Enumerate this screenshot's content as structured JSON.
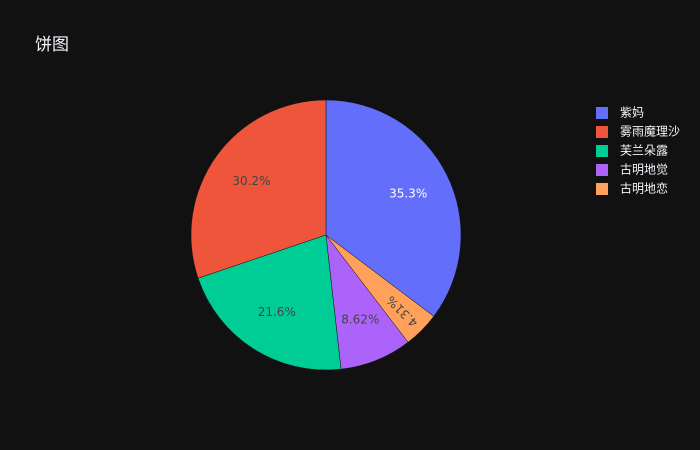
{
  "chart_data": {
    "type": "pie",
    "title": "饼图",
    "categories": [
      "紫妈",
      "雾雨魔理沙",
      "芙兰朵露",
      "古明地觉",
      "古明地恋"
    ],
    "values": [
      35.3,
      30.2,
      21.6,
      8.62,
      4.31
    ],
    "value_labels": [
      "35.3%",
      "30.2%",
      "21.6%",
      "8.62%",
      "4.31%"
    ],
    "colors": [
      "#636efa",
      "#ef553b",
      "#00cc96",
      "#ab63fa",
      "#ffa15a"
    ],
    "legend": "top-right"
  }
}
